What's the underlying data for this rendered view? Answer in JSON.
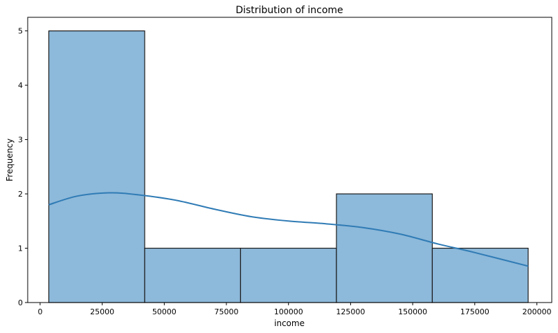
{
  "chart_data": {
    "type": "bar",
    "title": "Distribution of income",
    "xlabel": "income",
    "ylabel": "Frequency",
    "xlim": [
      -5000,
      206000
    ],
    "ylim": [
      0,
      5.25
    ],
    "x_ticks": [
      0,
      25000,
      50000,
      75000,
      100000,
      125000,
      150000,
      175000,
      200000
    ],
    "y_ticks": [
      0,
      1,
      2,
      3,
      4,
      5
    ],
    "bins": [
      {
        "start": 3500,
        "end": 42100,
        "count": 5
      },
      {
        "start": 42100,
        "end": 80700,
        "count": 1
      },
      {
        "start": 80700,
        "end": 119300,
        "count": 1
      },
      {
        "start": 119300,
        "end": 157900,
        "count": 2
      },
      {
        "start": 157900,
        "end": 196500,
        "count": 1
      }
    ],
    "kde": {
      "x": [
        3500,
        15000,
        28000,
        40000,
        55000,
        70000,
        85000,
        100000,
        115000,
        130000,
        145000,
        160000,
        175000,
        196500
      ],
      "y": [
        1.8,
        1.96,
        2.02,
        1.98,
        1.88,
        1.72,
        1.58,
        1.5,
        1.45,
        1.38,
        1.26,
        1.08,
        0.92,
        0.67
      ]
    },
    "bar_fill": "#8db9da",
    "bar_edge": "#1a1a1a",
    "kde_color": "#2f7bb5",
    "grid": false,
    "legend": false
  }
}
